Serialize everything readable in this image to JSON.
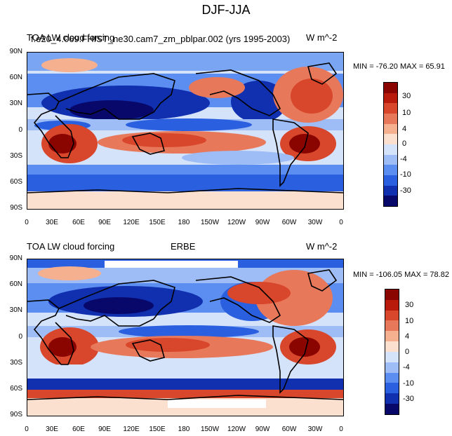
{
  "figure": {
    "title": "DJF-JJA"
  },
  "panels": [
    {
      "id": "model",
      "left_title": "TOA LW cloud forcing",
      "center_title": "f.e20_4.069.FHIST_ne30.cam7_zm_pblpar.002 (yrs 1995-2003)",
      "right_title": "W m^-2",
      "min_max": "MIN = -76.20 MAX =  65.91",
      "colorbar_labels": [
        "30",
        "10",
        "4",
        "0",
        "-4",
        "-10",
        "-30"
      ],
      "colors": [
        "#08086b",
        "#1030b0",
        "#2a5fe0",
        "#5b8ef0",
        "#9ebcf5",
        "#d4e2fa",
        "#fbe0d0",
        "#f5b090",
        "#e8785a",
        "#d8462c",
        "#b81a0c",
        "#8a0400"
      ]
    },
    {
      "id": "obs",
      "left_title": "TOA LW cloud forcing",
      "center_title": "ERBE",
      "right_title": "W m^-2",
      "min_max": "MIN = -106.05 MAX =  78.82",
      "colorbar_labels": [
        "30",
        "10",
        "4",
        "0",
        "-4",
        "-10",
        "-30"
      ],
      "colors": [
        "#08086b",
        "#1030b0",
        "#2a5fe0",
        "#5b8ef0",
        "#9ebcf5",
        "#d4e2fa",
        "#fbe0d0",
        "#f5b090",
        "#e8785a",
        "#d8462c",
        "#b81a0c",
        "#8a0400"
      ]
    }
  ],
  "axes": {
    "lat_labels": [
      "90N",
      "60N",
      "30N",
      "0",
      "30S",
      "60S",
      "90S"
    ],
    "lon_labels": [
      "0",
      "30E",
      "60E",
      "90E",
      "120E",
      "150E",
      "180",
      "150W",
      "120W",
      "90W",
      "60W",
      "30W",
      "0"
    ]
  }
}
